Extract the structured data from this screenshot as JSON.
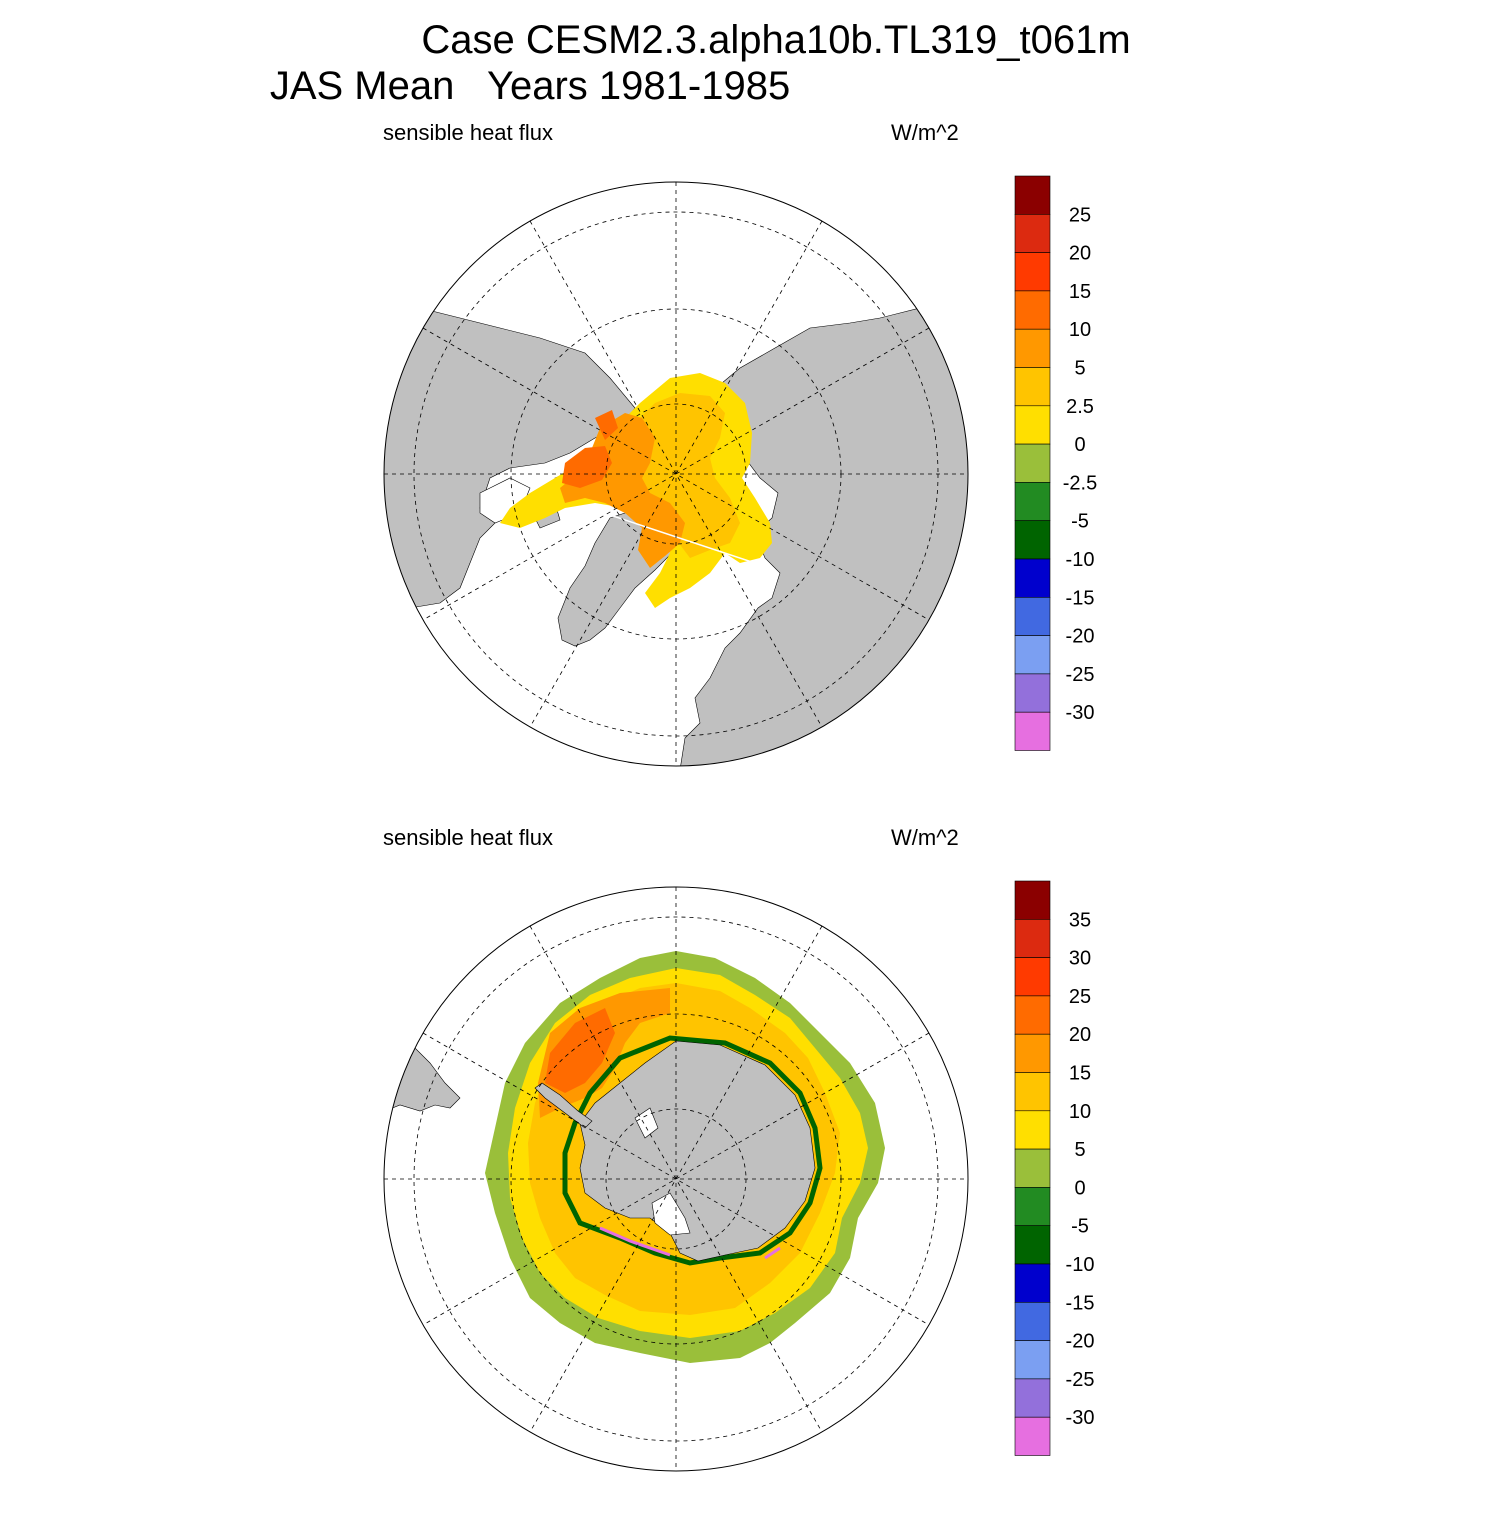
{
  "title": {
    "line1": "Case CESM2.3.alpha10b.TL319_t061m",
    "line2": "JAS Mean   Years 1981-1985"
  },
  "colors": {
    "land": "#c0c0c0",
    "ice_free": "#ffffff",
    "palette": [
      "#e66fe0",
      "#9370db",
      "#7b9ff2",
      "#4169e1",
      "#0000cd",
      "#006400",
      "#228b22",
      "#9abf3a",
      "#ffdf00",
      "#ffc400",
      "#ff9800",
      "#ff6b00",
      "#ff3a00",
      "#dc2a10",
      "#8b0000"
    ]
  },
  "panels": [
    {
      "id": "north",
      "hemisphere": "NH",
      "variable_label": "sensible heat flux",
      "units_label": "W/m^2",
      "colorbar_labels": [
        "25",
        "20",
        "15",
        "10",
        "5",
        "2.5",
        "0",
        "-2.5",
        "-5",
        "-10",
        "-15",
        "-20",
        "-25",
        "-30"
      ]
    },
    {
      "id": "south",
      "hemisphere": "SH",
      "variable_label": "sensible heat flux",
      "units_label": "W/m^2",
      "colorbar_labels": [
        "35",
        "30",
        "25",
        "20",
        "15",
        "10",
        "5",
        "0",
        "-5",
        "-10",
        "-15",
        "-20",
        "-25",
        "-30"
      ]
    }
  ]
}
